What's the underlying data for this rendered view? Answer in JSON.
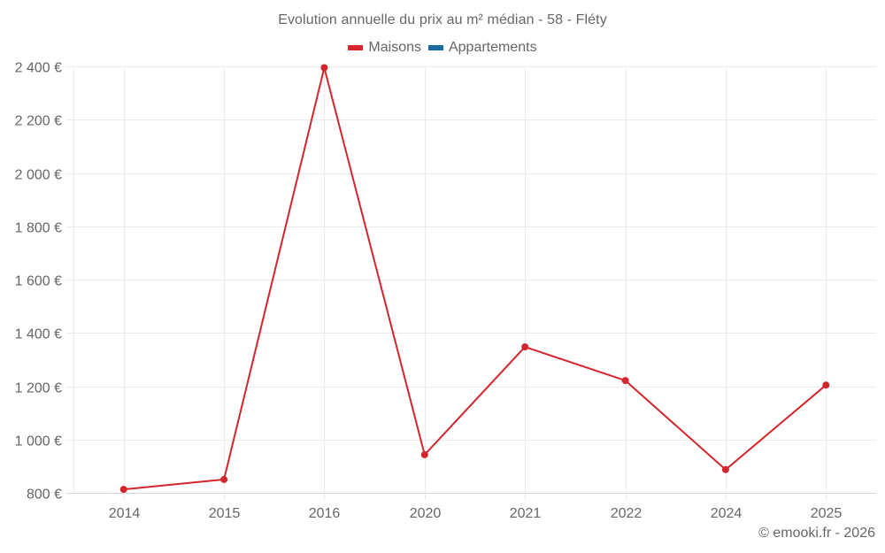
{
  "title": "Evolution annuelle du prix au m² médian - 58 - Fléty",
  "legend": [
    {
      "label": "Maisons",
      "color": "#d7262b"
    },
    {
      "label": "Appartements",
      "color": "#1a6aa3"
    }
  ],
  "credit": "© emooki.fr - 2026",
  "colors": {
    "line": "#d3262c",
    "grid": "#ebebeb",
    "axis": "#d6d6d6",
    "text": "#666666"
  },
  "chart_data": {
    "type": "line",
    "title": "Evolution annuelle du prix au m² médian - 58 - Fléty",
    "xlabel": "",
    "ylabel": "",
    "categories": [
      "2014",
      "2015",
      "2016",
      "2020",
      "2021",
      "2022",
      "2024",
      "2025"
    ],
    "series": [
      {
        "name": "Maisons",
        "color": "#d3262c",
        "values": [
          814,
          851,
          2395,
          944,
          1348,
          1222,
          888,
          1205
        ]
      },
      {
        "name": "Appartements",
        "color": "#1a6aa3",
        "values": []
      }
    ],
    "ylim": [
      800,
      2400
    ],
    "yticks": [
      800,
      1000,
      1200,
      1400,
      1600,
      1800,
      2000,
      2200,
      2400
    ],
    "ytick_labels": [
      "800 €",
      "1 000 €",
      "1 200 €",
      "1 400 €",
      "1 600 €",
      "1 800 €",
      "2 000 €",
      "2 200 €",
      "2 400 €"
    ],
    "grid": true,
    "legend_position": "top"
  }
}
